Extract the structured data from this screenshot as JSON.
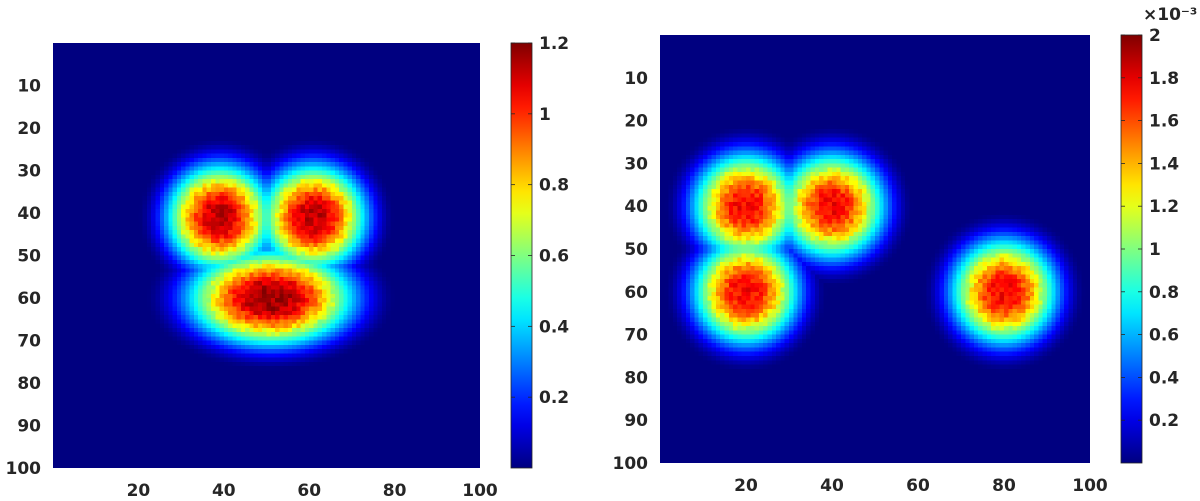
{
  "chart_data": [
    {
      "type": "heatmap",
      "colormap": "jet",
      "title": "",
      "xlabel": "",
      "ylabel": "",
      "xlim": [
        0,
        100
      ],
      "ylim": [
        100,
        0
      ],
      "x_ticks": [
        20,
        40,
        60,
        80,
        100
      ],
      "y_ticks": [
        10,
        20,
        30,
        40,
        50,
        60,
        70,
        80,
        90,
        100
      ],
      "x_tick_labels": [
        "20",
        "40",
        "60",
        "80",
        "100"
      ],
      "y_tick_labels": [
        "10",
        "20",
        "30",
        "40",
        "50",
        "60",
        "70",
        "80",
        "90",
        "100"
      ],
      "colorbar": {
        "range": [
          0,
          1.2
        ],
        "ticks": [
          0.2,
          0.4,
          0.6,
          0.8,
          1,
          1.2
        ],
        "tick_labels": [
          "0.2",
          "0.4",
          "0.6",
          "0.8",
          "1",
          "1.2"
        ],
        "exponent_label": ""
      },
      "features": [
        {
          "shape": "disk",
          "x": 39,
          "y": 41,
          "peak": 1.15
        },
        {
          "shape": "disk",
          "x": 61,
          "y": 41,
          "peak": 1.15
        },
        {
          "shape": "ellipse",
          "x": 51,
          "y": 60,
          "peak": 1.2
        }
      ]
    },
    {
      "type": "heatmap",
      "colormap": "jet",
      "title": "",
      "xlabel": "",
      "ylabel": "",
      "xlim": [
        0,
        100
      ],
      "ylim": [
        100,
        0
      ],
      "x_ticks": [
        20,
        40,
        60,
        80,
        100
      ],
      "y_ticks": [
        10,
        20,
        30,
        40,
        50,
        60,
        70,
        80,
        90,
        100
      ],
      "x_tick_labels": [
        "20",
        "40",
        "60",
        "80",
        "100"
      ],
      "y_tick_labels": [
        "10",
        "20",
        "30",
        "40",
        "50",
        "60",
        "70",
        "80",
        "90",
        "100"
      ],
      "colorbar": {
        "range": [
          0,
          0.002
        ],
        "ticks": [
          0.0002,
          0.0004,
          0.0006,
          0.0008,
          0.001,
          0.0012,
          0.0014,
          0.0016,
          0.0018,
          0.002
        ],
        "tick_labels": [
          "0.2",
          "0.4",
          "0.6",
          "0.8",
          "1",
          "1.2",
          "1.4",
          "1.6",
          "1.8",
          "2"
        ],
        "exponent_label": "×10⁻³"
      },
      "features": [
        {
          "shape": "disk",
          "x": 20,
          "y": 40,
          "peak": 0.0018
        },
        {
          "shape": "disk",
          "x": 40,
          "y": 40,
          "peak": 0.0018
        },
        {
          "shape": "disk",
          "x": 20,
          "y": 60,
          "peak": 0.0018
        },
        {
          "shape": "disk",
          "x": 80,
          "y": 60,
          "peak": 0.0018
        }
      ]
    }
  ]
}
